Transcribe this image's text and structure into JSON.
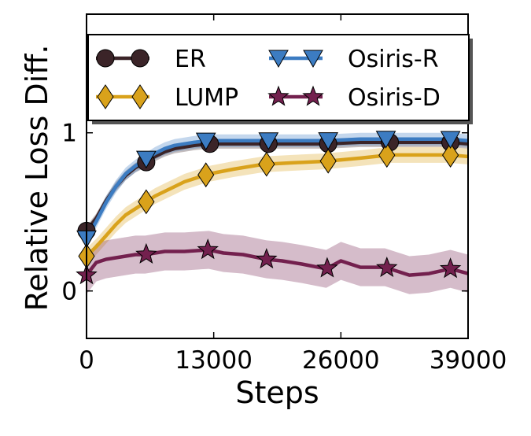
{
  "chart_data": {
    "type": "line",
    "xlabel": "Steps",
    "ylabel": "Relative Loss Diff.",
    "xlim": [
      0,
      39000
    ],
    "ylim": [
      -0.3,
      1.75
    ],
    "xticks": [
      0,
      13000,
      26000,
      39000
    ],
    "xtick_labels": [
      "0",
      "13000",
      "26000",
      "39000"
    ],
    "yticks": [
      0,
      1
    ],
    "ytick_labels": [
      "0",
      "1"
    ],
    "grid": false,
    "legend_position": "upper",
    "series": [
      {
        "name": "ER",
        "color": "#3b2428",
        "marker": "circle",
        "x": [
          0,
          1000,
          2000,
          3000,
          4000,
          5000,
          6000,
          7000,
          8000,
          9000,
          10000,
          11000,
          12500,
          15000,
          18000,
          21000,
          24500,
          28000,
          31000,
          34000,
          37000,
          39000
        ],
        "y": [
          0.38,
          0.46,
          0.57,
          0.66,
          0.73,
          0.78,
          0.81,
          0.85,
          0.88,
          0.9,
          0.91,
          0.92,
          0.93,
          0.93,
          0.93,
          0.93,
          0.93,
          0.94,
          0.94,
          0.94,
          0.94,
          0.93
        ],
        "band": 0.03,
        "marker_x": [
          0,
          6100,
          12600,
          18600,
          24700,
          31000,
          37200
        ]
      },
      {
        "name": "LUMP",
        "color": "#d9a21b",
        "marker": "diamond",
        "x": [
          0,
          1000,
          2000,
          3000,
          4000,
          5000,
          6000,
          7000,
          8000,
          9000,
          10000,
          11000,
          12500,
          15000,
          18000,
          21000,
          24500,
          28000,
          31000,
          34000,
          37000,
          39000
        ],
        "y": [
          0.22,
          0.28,
          0.35,
          0.42,
          0.48,
          0.52,
          0.56,
          0.6,
          0.63,
          0.66,
          0.69,
          0.71,
          0.74,
          0.77,
          0.8,
          0.81,
          0.82,
          0.84,
          0.86,
          0.86,
          0.86,
          0.85
        ],
        "band": 0.05,
        "marker_x": [
          0,
          6100,
          12200,
          18400,
          24700,
          30700,
          37200
        ]
      },
      {
        "name": "Osiris-R",
        "color": "#3c7cc2",
        "marker": "triangle-down",
        "x": [
          0,
          1000,
          2000,
          3000,
          4000,
          5000,
          6000,
          7000,
          8000,
          9000,
          10000,
          11000,
          12500,
          15000,
          18000,
          21000,
          24500,
          28000,
          31000,
          34000,
          37000,
          39000
        ],
        "y": [
          0.33,
          0.44,
          0.56,
          0.66,
          0.74,
          0.79,
          0.83,
          0.87,
          0.9,
          0.92,
          0.93,
          0.94,
          0.95,
          0.95,
          0.95,
          0.95,
          0.95,
          0.96,
          0.96,
          0.96,
          0.96,
          0.95
        ],
        "band": 0.04,
        "marker_x": [
          0,
          6100,
          12200,
          18600,
          24700,
          30600,
          37200
        ]
      },
      {
        "name": "Osiris-D",
        "color": "#73204e",
        "marker": "star",
        "x": [
          0,
          1000,
          2000,
          3000,
          4000,
          5000,
          6000,
          8000,
          10000,
          12500,
          14000,
          16000,
          18400,
          20000,
          22000,
          24500,
          26000,
          28000,
          30500,
          33000,
          35000,
          37200,
          39000
        ],
        "y": [
          0.1,
          0.18,
          0.2,
          0.21,
          0.22,
          0.23,
          0.23,
          0.25,
          0.25,
          0.26,
          0.24,
          0.23,
          0.2,
          0.19,
          0.17,
          0.14,
          0.19,
          0.15,
          0.15,
          0.1,
          0.11,
          0.14,
          0.11
        ],
        "band": 0.12,
        "marker_x": [
          0,
          6100,
          12400,
          18400,
          24600,
          30700,
          37200
        ]
      }
    ]
  }
}
